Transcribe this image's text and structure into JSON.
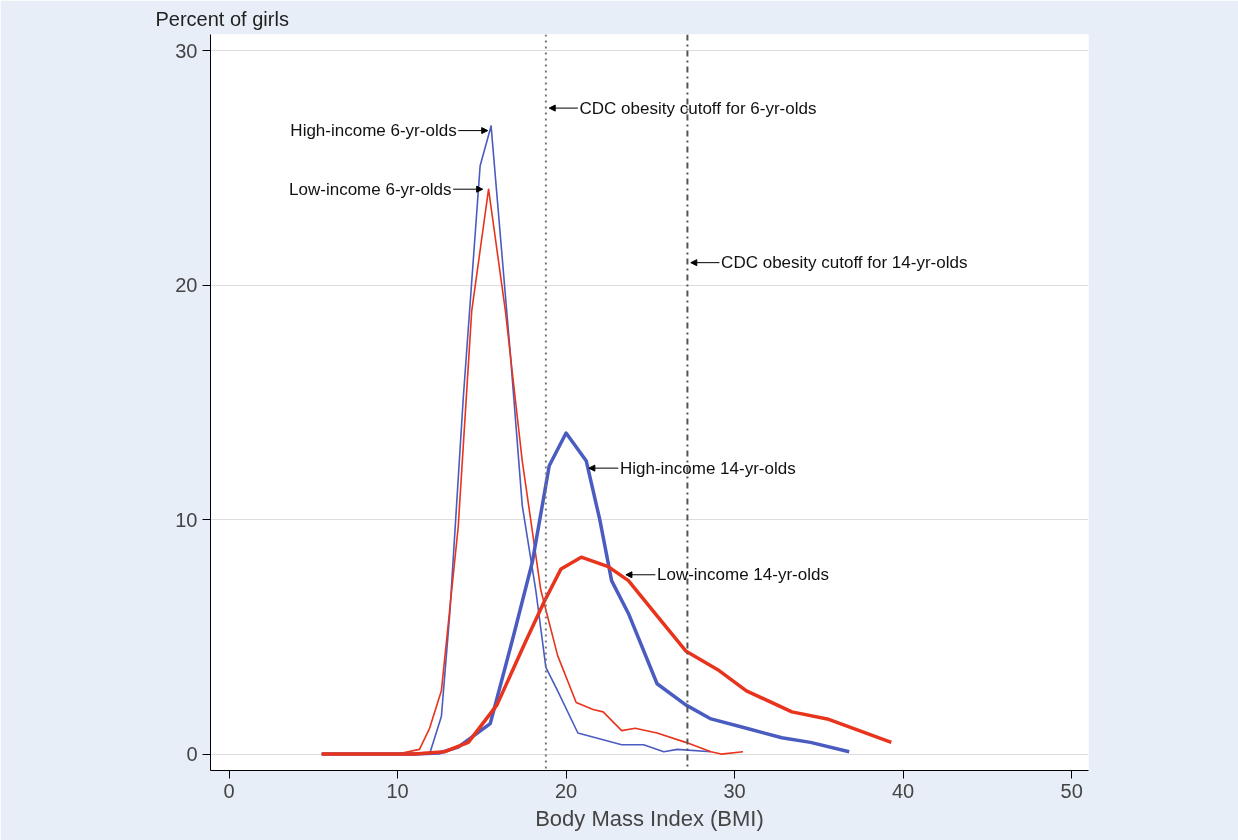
{
  "chart_data": {
    "type": "line",
    "ylabel": "Percent of girls",
    "xlabel": "Body Mass Index (BMI)",
    "xlim": [
      -1.1,
      51
    ],
    "ylim": [
      -0.7,
      30.7
    ],
    "xticks": [
      0,
      10,
      20,
      30,
      40,
      50
    ],
    "yticks": [
      0,
      10,
      20,
      30
    ],
    "grid": "y",
    "marker": "none",
    "line_style": "solid",
    "series": [
      {
        "color": "#4a5cc0",
        "x": [
          5.5,
          10,
          11.9,
          12.6,
          13.1,
          13.9,
          14.9,
          15.55,
          16.7,
          17.4,
          18.2,
          18.8,
          19.5,
          20.7,
          23.3,
          24.6,
          25.8,
          26.6,
          28.6
        ],
        "values": [
          0,
          0,
          0,
          1.6,
          6.0,
          15.2,
          25.1,
          26.8,
          17.0,
          10.6,
          7.0,
          3.7,
          2.7,
          0.9,
          0.4,
          0.4,
          0.1,
          0.2,
          0.1
        ]
      },
      {
        "color": "#e8341c",
        "x": [
          5.5,
          10,
          11.3,
          11.9,
          12.6,
          13.6,
          14.4,
          15.4,
          16.4,
          17.4,
          18.5,
          19.5,
          20.6,
          21.6,
          22.2,
          23.3,
          24.1,
          25.4,
          27.1,
          28.6,
          29.2,
          30.5
        ],
        "values": [
          0,
          0,
          0.2,
          1.1,
          2.7,
          9.7,
          18.9,
          24.1,
          18.9,
          12.5,
          7.0,
          4.2,
          2.2,
          1.9,
          1.8,
          1.0,
          1.1,
          0.9,
          0.5,
          0.1,
          0,
          0.1
        ]
      },
      {
        "color": "#4a5cc0",
        "x": [
          5.5,
          11,
          12.5,
          13.6,
          15.5,
          16.9,
          18.0,
          19.0,
          20.0,
          21.2,
          22.0,
          22.7,
          23.7,
          25.4,
          27.1,
          28.6,
          30.7,
          32.8,
          34.5,
          36.8
        ],
        "values": [
          0,
          0,
          0.05,
          0.3,
          1.3,
          5.1,
          8.2,
          12.3,
          13.7,
          12.5,
          10.0,
          7.4,
          6.0,
          3.0,
          2.1,
          1.5,
          1.1,
          0.7,
          0.5,
          0.1
        ]
      },
      {
        "color": "#e8341c",
        "x": [
          5.5,
          11,
          12.8,
          14.2,
          15.9,
          17.6,
          18.7,
          19.7,
          20.9,
          22.5,
          23.7,
          25.4,
          27.1,
          29.0,
          30.7,
          33.4,
          35.5,
          39.3
        ],
        "values": [
          0,
          0,
          0.1,
          0.5,
          2.1,
          4.8,
          6.5,
          7.9,
          8.4,
          8.0,
          7.4,
          5.9,
          4.4,
          3.6,
          2.7,
          1.8,
          1.5,
          0.5
        ]
      }
    ],
    "ref_lines": [
      {
        "axis": "x",
        "value": 18.8,
        "label": "CDC obesity cutoff for 6-yr-olds",
        "color": "#777777",
        "line_style": "dotted"
      },
      {
        "axis": "x",
        "value": 27.2,
        "label": "CDC obesity cutoff for 14-yr-olds",
        "color": "#555555",
        "line_style": "dashdot"
      }
    ],
    "annotations": [
      {
        "text": "High-income 6-yr-olds",
        "x": 15.5,
        "y": 26.6
      },
      {
        "text": "Low-income 6-yr-olds",
        "x": 15.2,
        "y": 24.1
      },
      {
        "text": "High-income 14-yr-olds",
        "x": 21.2,
        "y": 12.2
      },
      {
        "text": "Low-income 14-yr-olds",
        "x": 23.4,
        "y": 7.65
      }
    ]
  }
}
